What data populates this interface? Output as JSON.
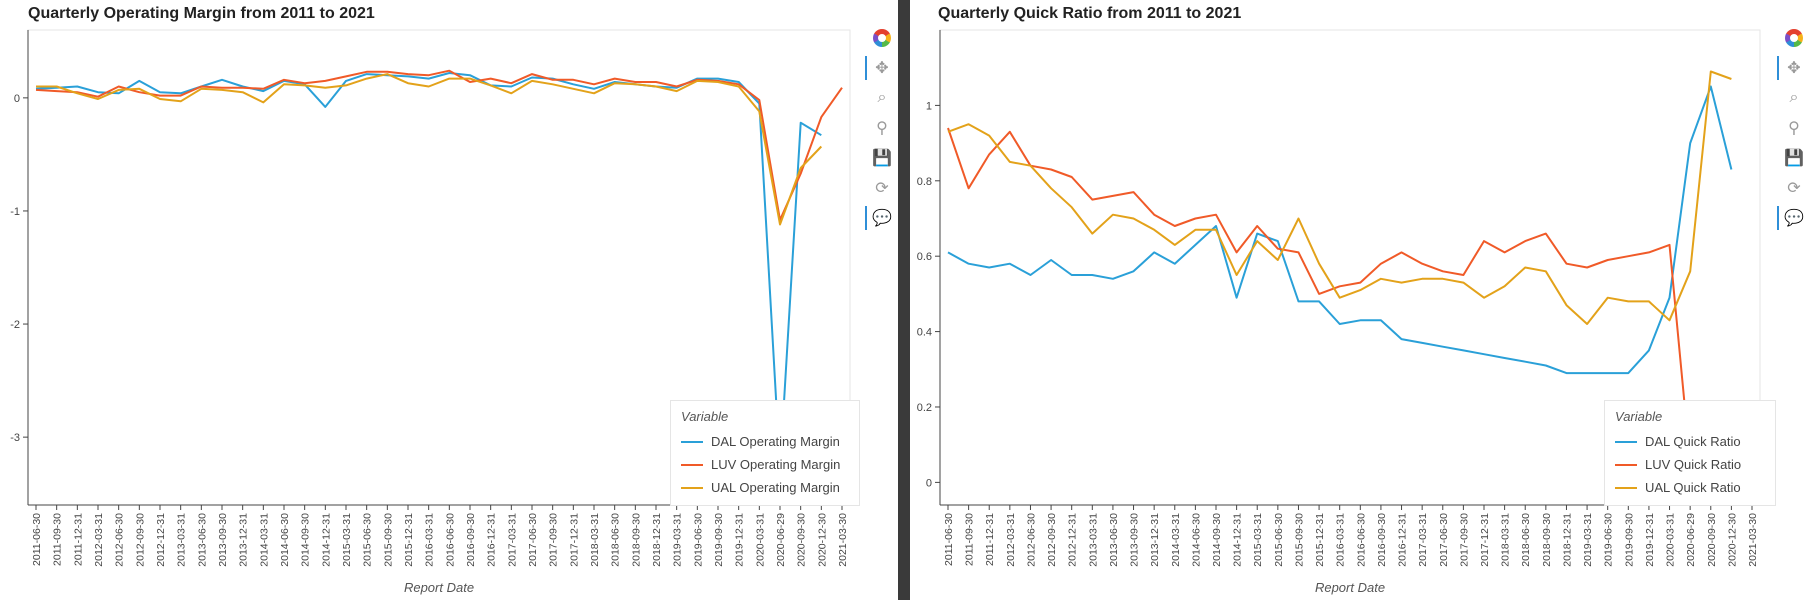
{
  "chart_data": [
    {
      "type": "line",
      "title": "Quarterly Operating Margin from 2011 to 2021",
      "xlabel": "Report Date",
      "ylabel": "",
      "ylim": [
        -3.6,
        0.6
      ],
      "yticks": [
        0,
        -1,
        -2,
        -3
      ],
      "legend_title": "Variable",
      "legend_position": "bottom-right",
      "grid": false,
      "categories": [
        "2011-06-30",
        "2011-09-30",
        "2011-12-31",
        "2012-03-31",
        "2012-06-30",
        "2012-09-30",
        "2012-12-31",
        "2013-03-31",
        "2013-06-30",
        "2013-09-30",
        "2013-12-31",
        "2014-03-31",
        "2014-06-30",
        "2014-09-30",
        "2014-12-31",
        "2015-03-31",
        "2015-06-30",
        "2015-09-30",
        "2015-12-31",
        "2016-03-31",
        "2016-06-30",
        "2016-09-30",
        "2016-12-31",
        "2017-03-31",
        "2017-06-30",
        "2017-09-30",
        "2017-12-31",
        "2018-03-31",
        "2018-06-30",
        "2018-09-30",
        "2018-12-31",
        "2019-03-31",
        "2019-06-30",
        "2019-09-30",
        "2019-12-31",
        "2020-03-31",
        "2020-06-29",
        "2020-09-30",
        "2020-12-30",
        "2021-03-30"
      ],
      "series": [
        {
          "name": "DAL Operating Margin",
          "color": "#2aa0d8",
          "values": [
            0.08,
            0.09,
            0.1,
            0.05,
            0.04,
            0.15,
            0.05,
            0.04,
            0.1,
            0.16,
            0.1,
            0.06,
            0.15,
            0.12,
            -0.08,
            0.15,
            0.21,
            0.2,
            0.19,
            0.17,
            0.22,
            0.2,
            0.11,
            0.1,
            0.18,
            0.17,
            0.12,
            0.08,
            0.14,
            0.12,
            0.1,
            0.09,
            0.17,
            0.17,
            0.14,
            -0.05,
            -3.28,
            -0.22,
            -0.33,
            null
          ]
        },
        {
          "name": "LUV Operating Margin",
          "color": "#f05a28",
          "values": [
            0.07,
            0.06,
            0.05,
            0.01,
            0.1,
            0.05,
            0.02,
            0.02,
            0.1,
            0.09,
            0.09,
            0.08,
            0.16,
            0.13,
            0.15,
            0.19,
            0.23,
            0.23,
            0.21,
            0.2,
            0.24,
            0.14,
            0.17,
            0.13,
            0.21,
            0.16,
            0.16,
            0.12,
            0.17,
            0.14,
            0.14,
            0.1,
            0.16,
            0.15,
            0.12,
            -0.02,
            -1.08,
            -0.67,
            -0.17,
            0.09
          ]
        },
        {
          "name": "UAL Operating Margin",
          "color": "#e3a21a",
          "values": [
            0.1,
            0.1,
            0.04,
            -0.01,
            0.07,
            0.08,
            -0.01,
            -0.03,
            0.08,
            0.07,
            0.05,
            -0.04,
            0.12,
            0.11,
            0.09,
            0.11,
            0.17,
            0.21,
            0.13,
            0.1,
            0.17,
            0.17,
            0.11,
            0.04,
            0.15,
            0.12,
            0.08,
            0.04,
            0.13,
            0.12,
            0.1,
            0.06,
            0.15,
            0.14,
            0.1,
            -0.12,
            -1.12,
            -0.62,
            -0.43,
            null
          ]
        }
      ]
    },
    {
      "type": "line",
      "title": "Quarterly Quick Ratio from 2011 to 2021",
      "xlabel": "Report Date",
      "ylabel": "",
      "ylim": [
        -0.06,
        1.2
      ],
      "yticks": [
        0,
        0.2,
        0.4,
        0.6,
        0.8,
        1
      ],
      "legend_title": "Variable",
      "legend_position": "bottom-right",
      "grid": false,
      "categories": [
        "2011-06-30",
        "2011-09-30",
        "2011-12-31",
        "2012-03-31",
        "2012-06-30",
        "2012-09-30",
        "2012-12-31",
        "2013-03-31",
        "2013-06-30",
        "2013-09-30",
        "2013-12-31",
        "2014-03-31",
        "2014-06-30",
        "2014-09-30",
        "2014-12-31",
        "2015-03-31",
        "2015-06-30",
        "2015-09-30",
        "2015-12-31",
        "2016-03-31",
        "2016-06-30",
        "2016-09-30",
        "2016-12-31",
        "2017-03-31",
        "2017-06-30",
        "2017-09-30",
        "2017-12-31",
        "2018-03-31",
        "2018-06-30",
        "2018-09-30",
        "2018-12-31",
        "2019-03-31",
        "2019-06-30",
        "2019-09-30",
        "2019-12-31",
        "2020-03-31",
        "2020-06-29",
        "2020-09-30",
        "2020-12-30",
        "2021-03-30"
      ],
      "series": [
        {
          "name": "DAL Quick Ratio",
          "color": "#2aa0d8",
          "values": [
            0.61,
            0.58,
            0.57,
            0.58,
            0.55,
            0.59,
            0.55,
            0.55,
            0.54,
            0.56,
            0.61,
            0.58,
            0.63,
            0.68,
            0.49,
            0.66,
            0.64,
            0.48,
            0.48,
            0.42,
            0.43,
            0.43,
            0.38,
            0.37,
            0.36,
            0.35,
            0.34,
            0.33,
            0.32,
            0.31,
            0.29,
            0.29,
            0.29,
            0.29,
            0.35,
            0.49,
            0.9,
            1.05,
            0.83,
            null
          ]
        },
        {
          "name": "LUV Quick Ratio",
          "color": "#f05a28",
          "values": [
            0.94,
            0.78,
            0.87,
            0.93,
            0.84,
            0.83,
            0.81,
            0.75,
            0.76,
            0.77,
            0.71,
            0.68,
            0.7,
            0.71,
            0.61,
            0.68,
            0.62,
            0.61,
            0.5,
            0.52,
            0.53,
            0.58,
            0.61,
            0.58,
            0.56,
            0.55,
            0.64,
            0.61,
            0.64,
            0.66,
            0.58,
            0.57,
            0.59,
            0.6,
            0.61,
            0.63,
            0.05,
            0.06,
            0.06,
            null
          ]
        },
        {
          "name": "UAL Quick Ratio",
          "color": "#e3a21a",
          "values": [
            0.93,
            0.95,
            0.92,
            0.85,
            0.84,
            0.78,
            0.73,
            0.66,
            0.71,
            0.7,
            0.67,
            0.63,
            0.67,
            0.67,
            0.55,
            0.64,
            0.59,
            0.7,
            0.58,
            0.49,
            0.51,
            0.54,
            0.53,
            0.54,
            0.54,
            0.53,
            0.49,
            0.52,
            0.57,
            0.56,
            0.47,
            0.42,
            0.49,
            0.48,
            0.48,
            0.43,
            0.56,
            1.09,
            1.07,
            null
          ]
        }
      ]
    }
  ],
  "toolbar": {
    "tools": [
      {
        "id": "logo",
        "icon": "bokeh-logo-icon"
      },
      {
        "id": "pan",
        "icon": "pan-icon",
        "glyph": "✥",
        "active": true
      },
      {
        "id": "box-zoom",
        "icon": "box-zoom-icon",
        "glyph": "⌕"
      },
      {
        "id": "wheel-zoom",
        "icon": "wheel-zoom-icon",
        "glyph": "⚲"
      },
      {
        "id": "save",
        "icon": "save-icon",
        "glyph": "💾"
      },
      {
        "id": "reset",
        "icon": "reset-icon",
        "glyph": "⟳"
      },
      {
        "id": "hover",
        "icon": "hover-icon",
        "glyph": "💬",
        "active": true
      }
    ]
  }
}
